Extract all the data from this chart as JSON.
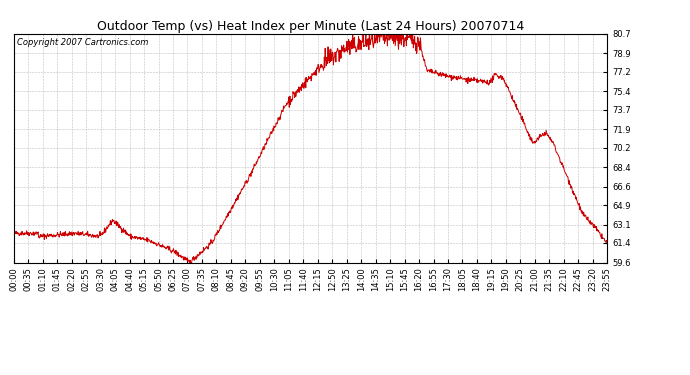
{
  "title": "Outdoor Temp (vs) Heat Index per Minute (Last 24 Hours) 20070714",
  "copyright_text": "Copyright 2007 Cartronics.com",
  "line_color": "#cc0000",
  "background_color": "#ffffff",
  "grid_color": "#b0b0b0",
  "yticks": [
    59.6,
    61.4,
    63.1,
    64.9,
    66.6,
    68.4,
    70.2,
    71.9,
    73.7,
    75.4,
    77.2,
    78.9,
    80.7
  ],
  "ymin": 59.6,
  "ymax": 80.7,
  "xtick_labels": [
    "00:00",
    "00:35",
    "01:10",
    "01:45",
    "02:20",
    "02:55",
    "03:30",
    "04:05",
    "04:40",
    "05:15",
    "05:50",
    "06:25",
    "07:00",
    "07:35",
    "08:10",
    "08:45",
    "09:20",
    "09:55",
    "10:30",
    "11:05",
    "11:40",
    "12:15",
    "12:50",
    "13:25",
    "14:00",
    "14:35",
    "15:10",
    "15:45",
    "16:20",
    "16:55",
    "17:30",
    "18:05",
    "18:40",
    "19:15",
    "19:50",
    "20:25",
    "21:00",
    "21:35",
    "22:10",
    "22:45",
    "23:20",
    "23:55"
  ],
  "noise_seed": 42,
  "title_fontsize": 9,
  "tick_fontsize": 6,
  "copyright_fontsize": 6
}
